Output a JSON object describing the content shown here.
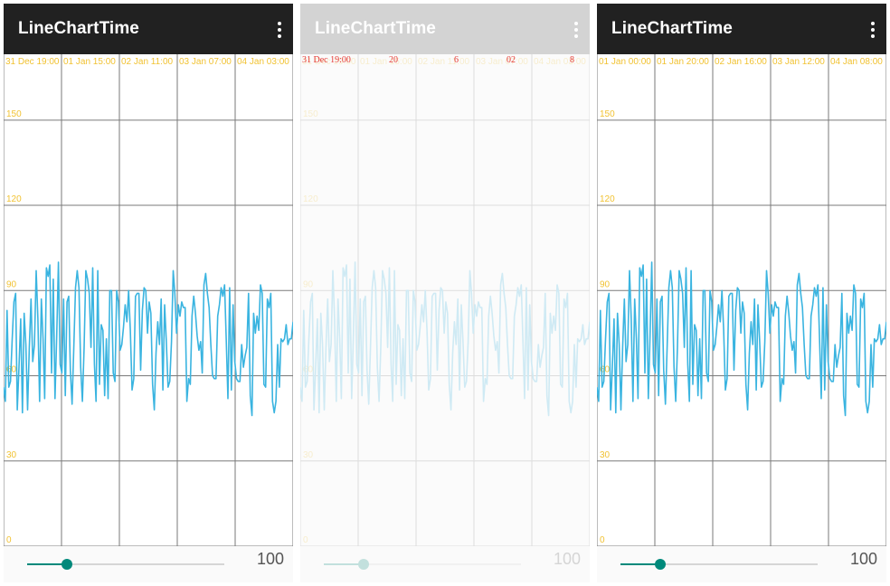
{
  "app_title": "LineChartTime",
  "menu_icon": "more-vert-icon",
  "colors": {
    "appbar": "#212121",
    "line": "#3ab4e0",
    "grid": "#7a7a7a",
    "axis_text": "#f1c232",
    "accent": "#00897b",
    "overlay_text": "#e53935"
  },
  "panels": [
    {
      "x_labels": [
        "31 Dec 19:00",
        "01 Jan 15:00",
        "02 Jan 11:00",
        "03 Jan 07:00",
        "04 Jan 03:00"
      ],
      "y_labels": [
        "0",
        "30",
        "60",
        "90",
        "120",
        "150"
      ],
      "slider_value": "100",
      "state": "normal"
    },
    {
      "x_labels": [
        "31 Dec 19:00",
        "01 Jan 15:00",
        "02 Jan 11:00",
        "03 Jan 07:00",
        "04 Jan 03:00"
      ],
      "y_labels": [
        "0",
        "30",
        "60",
        "90",
        "120",
        "150"
      ],
      "overlay_labels": [
        "31 Dec 19:00",
        "20",
        "6",
        "02",
        "8"
      ],
      "slider_value": "100",
      "state": "transition"
    },
    {
      "x_labels": [
        "01 Jan 00:00",
        "01 Jan 20:00",
        "02 Jan 16:00",
        "03 Jan 12:00",
        "04 Jan 08:00"
      ],
      "y_labels": [
        "0",
        "30",
        "60",
        "90",
        "120",
        "150"
      ],
      "slider_value": "100",
      "state": "normal"
    }
  ],
  "slider": {
    "min": 0,
    "max": 500,
    "value": 100
  },
  "chart_data": {
    "type": "line",
    "title": "",
    "xlabel": "",
    "ylabel": "",
    "ylim": [
      0,
      170
    ],
    "grid": true,
    "series": [
      {
        "values": [
          56,
          51,
          83,
          56,
          58,
          73,
          86,
          89,
          48,
          63,
          80,
          47,
          82,
          71,
          48,
          70,
          87,
          65,
          71,
          97,
          80,
          51,
          87,
          73,
          52,
          98,
          95,
          99,
          61,
          94,
          52,
          74,
          100,
          64,
          61,
          87,
          53,
          86,
          88,
          62,
          50,
          70,
          91,
          97,
          91,
          63,
          51,
          70,
          97,
          94,
          89,
          70,
          98,
          64,
          51,
          97,
          57,
          78,
          76,
          53,
          73,
          52,
          90,
          90,
          61,
          58,
          90,
          86,
          69,
          71,
          77,
          85,
          79,
          90,
          76,
          55,
          59,
          88,
          89,
          89,
          62,
          83,
          91,
          90,
          75,
          86,
          82,
          57,
          48,
          68,
          79,
          71,
          87,
          55,
          85,
          72,
          56,
          58,
          72,
          97,
          89,
          75,
          85,
          81,
          86,
          84,
          84,
          51,
          59,
          57,
          81,
          88,
          82,
          74,
          69,
          72,
          61,
          92,
          96,
          89,
          84,
          71,
          60,
          59,
          59,
          81,
          85,
          91,
          88,
          92,
          72,
          52,
          91,
          55,
          85,
          65,
          59,
          58,
          58,
          71,
          63,
          67,
          70,
          89,
          53,
          46,
          82,
          75,
          81,
          76,
          92,
          89,
          57,
          56,
          87,
          84,
          89,
          51,
          47,
          51,
          71,
          56,
          73,
          72,
          73,
          78,
          71,
          73,
          73,
          79
        ]
      }
    ]
  }
}
